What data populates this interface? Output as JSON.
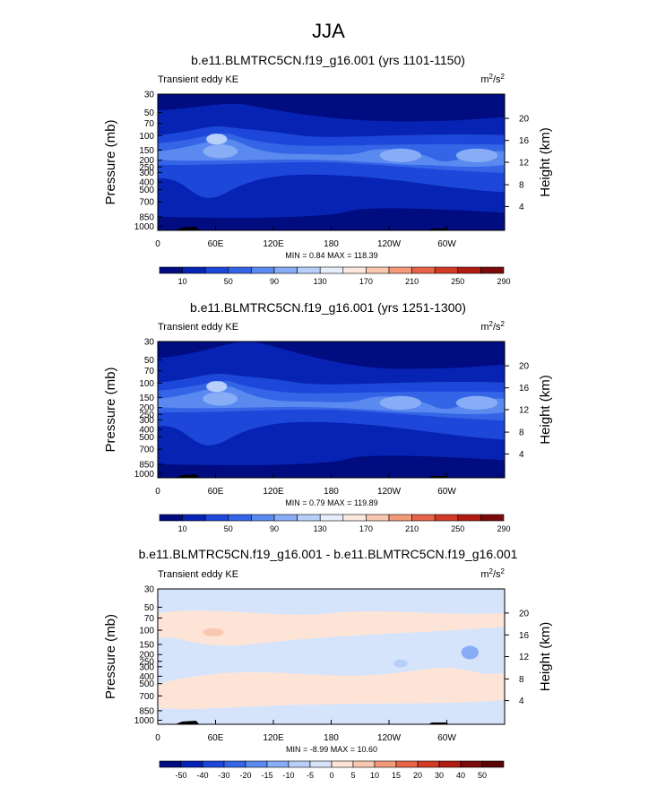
{
  "page_title": "JJA",
  "chart_data": [
    {
      "type": "contour",
      "title": "b.e11.BLMTRC5CN.f19_g16.001 (yrs 1101-1150)",
      "left_string": "Transient eddy KE",
      "units_base": "m",
      "units_exp": "2",
      "units_mid": "/s",
      "units_exp2": "2",
      "ylabel": "Pressure (mb)",
      "ylabel_right": "Height (km)",
      "pressure_ticks": [
        "30",
        "50",
        "70",
        "100",
        "150",
        "200",
        "250",
        "300",
        "400",
        "500",
        "700",
        "850",
        "1000"
      ],
      "height_ticks": [
        "20",
        "16",
        "12",
        "8",
        "4"
      ],
      "x_ticks": [
        "0",
        "60E",
        "120E",
        "180",
        "120W",
        "60W"
      ],
      "stats": "MIN =   0.84  MAX = 118.39",
      "colorbar_labels": [
        "10",
        "50",
        "90",
        "130",
        "170",
        "210",
        "250",
        "290"
      ],
      "colorbar_colors": [
        "#000c80",
        "#0723b4",
        "#1d47d8",
        "#3465e6",
        "#5a8af0",
        "#88adf6",
        "#b8cffa",
        "#e6eefc",
        "#fce8de",
        "#f8c7b0",
        "#f29a7a",
        "#e86448",
        "#d13b26",
        "#b11c12",
        "#7c0a0a"
      ]
    },
    {
      "type": "contour",
      "title": "b.e11.BLMTRC5CN.f19_g16.001 (yrs 1251-1300)",
      "left_string": "Transient eddy KE",
      "units_base": "m",
      "units_exp": "2",
      "units_mid": "/s",
      "units_exp2": "2",
      "ylabel": "Pressure (mb)",
      "ylabel_right": "Height (km)",
      "pressure_ticks": [
        "30",
        "50",
        "70",
        "100",
        "150",
        "200",
        "250",
        "300",
        "400",
        "500",
        "700",
        "850",
        "1000"
      ],
      "height_ticks": [
        "20",
        "16",
        "12",
        "8",
        "4"
      ],
      "x_ticks": [
        "0",
        "60E",
        "120E",
        "180",
        "120W",
        "60W"
      ],
      "stats": "MIN =   0.79  MAX = 119.89",
      "colorbar_labels": [
        "10",
        "50",
        "90",
        "130",
        "170",
        "210",
        "250",
        "290"
      ],
      "colorbar_colors": [
        "#000c80",
        "#0723b4",
        "#1d47d8",
        "#3465e6",
        "#5a8af0",
        "#88adf6",
        "#b8cffa",
        "#e6eefc",
        "#fce8de",
        "#f8c7b0",
        "#f29a7a",
        "#e86448",
        "#d13b26",
        "#b11c12",
        "#7c0a0a"
      ]
    },
    {
      "type": "contour",
      "title": "b.e11.BLMTRC5CN.f19_g16.001 - b.e11.BLMTRC5CN.f19_g16.001",
      "left_string": "Transient eddy KE",
      "units_base": "m",
      "units_exp": "2",
      "units_mid": "/s",
      "units_exp2": "2",
      "ylabel": "Pressure (mb)",
      "ylabel_right": "Height (km)",
      "pressure_ticks": [
        "30",
        "50",
        "70",
        "100",
        "150",
        "200",
        "250",
        "300",
        "400",
        "500",
        "700",
        "850",
        "1000"
      ],
      "height_ticks": [
        "20",
        "16",
        "12",
        "8",
        "4"
      ],
      "x_ticks": [
        "0",
        "60E",
        "120E",
        "180",
        "120W",
        "60W"
      ],
      "stats": "MIN =  -8.99  MAX =  10.60",
      "colorbar_labels": [
        "-50",
        "-40",
        "-30",
        "-20",
        "-15",
        "-10",
        "-5",
        "0",
        "5",
        "10",
        "15",
        "20",
        "30",
        "40",
        "50"
      ],
      "colorbar_colors": [
        "#000c80",
        "#0723b4",
        "#1d47d8",
        "#3465e6",
        "#5a8af0",
        "#88adf6",
        "#b8cffa",
        "#d6e4fb",
        "#fde4d6",
        "#f8c7b0",
        "#f29a7a",
        "#e86448",
        "#d13b26",
        "#b11c12",
        "#7c0a0a",
        "#5a0606"
      ]
    }
  ]
}
